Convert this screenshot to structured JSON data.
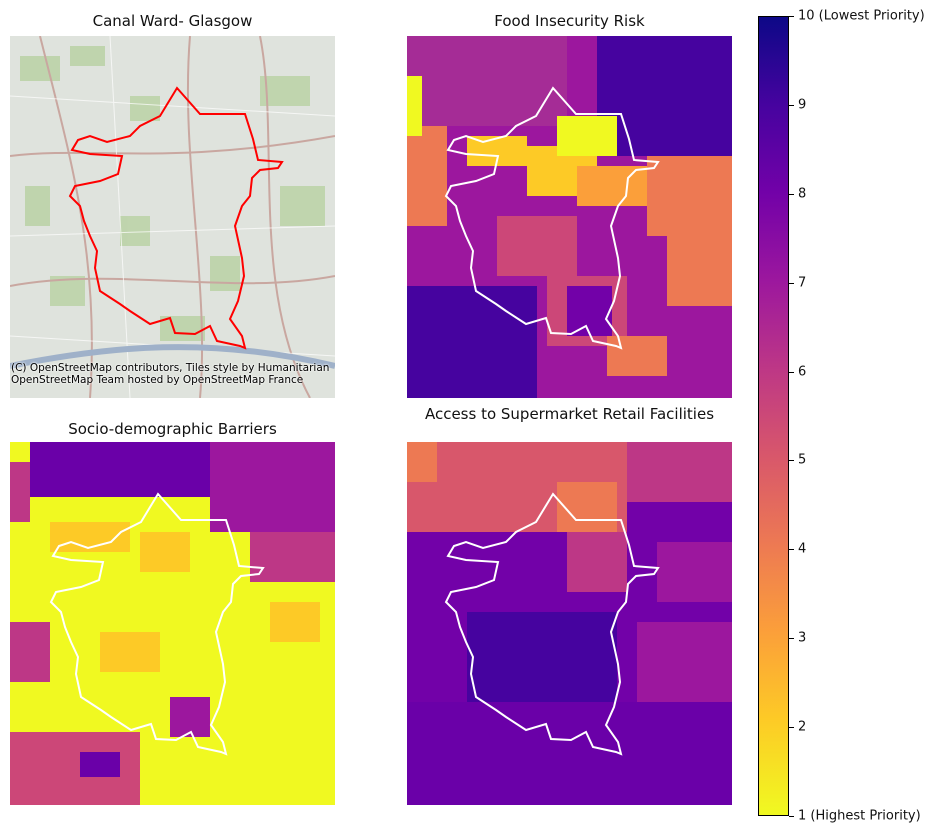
{
  "panels": [
    {
      "title": "Canal Ward- Glasgow",
      "kind": "basemap",
      "credit": "(C) OpenStreetMap contributors, Tiles style by Humanitarian OpenStreetMap Team hosted by OpenStreetMap France"
    },
    {
      "title": "Food Insecurity Risk",
      "kind": "choropleth"
    },
    {
      "title": "Socio-demographic Barriers",
      "kind": "choropleth"
    },
    {
      "title": "Access to Supermarket Retail Facilities",
      "kind": "choropleth"
    }
  ],
  "boundary_color_basemap": "#ff0000",
  "boundary_color_choropleth": "#ffffff",
  "colorbar": {
    "colormap": "plasma",
    "ticks": [
      "1 (Highest Priority)",
      "2",
      "3",
      "4",
      "5",
      "6",
      "7",
      "8",
      "9",
      "10 (Lowest Priority)"
    ]
  }
}
